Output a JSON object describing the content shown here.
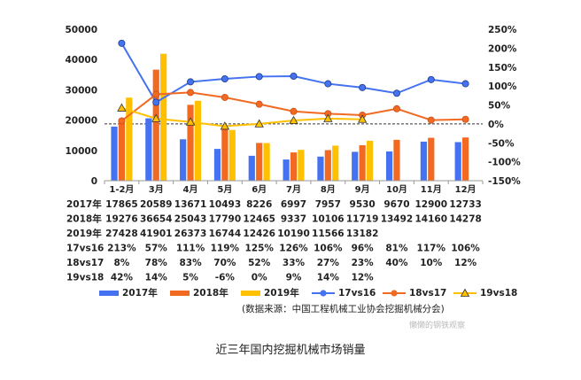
{
  "caption": "近三年国内挖掘机械市场销量",
  "source": "(数据来源：中国工程机械工业协会挖掘机械分会)",
  "watermark": "懒懒的钢铁观察",
  "chart_data": {
    "type": "bar",
    "categories": [
      "1-2月",
      "3月",
      "4月",
      "5月",
      "6月",
      "7月",
      "8月",
      "9月",
      "10月",
      "11月",
      "12月"
    ],
    "ylim": [
      0,
      50000
    ],
    "yticks": [
      0,
      10000,
      20000,
      30000,
      40000,
      50000
    ],
    "y2lim": [
      -150,
      250
    ],
    "y2ticks": [
      -150,
      -100,
      -50,
      0,
      50,
      100,
      150,
      200,
      250
    ],
    "bar_series": [
      {
        "name": "2017年",
        "color": "#4472f0",
        "values": [
          17865,
          20589,
          13671,
          10493,
          8226,
          6997,
          7957,
          9530,
          9670,
          12900,
          12733
        ]
      },
      {
        "name": "2018年",
        "color": "#f26a22",
        "values": [
          19276,
          36654,
          25043,
          17790,
          12465,
          9337,
          10106,
          11719,
          13492,
          14160,
          14278
        ]
      },
      {
        "name": "2019年",
        "color": "#ffc000",
        "values": [
          27428,
          41901,
          26373,
          16744,
          12426,
          10190,
          11566,
          13182,
          null,
          null,
          null
        ]
      }
    ],
    "line_series": [
      {
        "name": "17vs16",
        "color": "#4472f0",
        "marker": "circle",
        "values": [
          213,
          57,
          111,
          119,
          125,
          126,
          106,
          96,
          81,
          117,
          106
        ]
      },
      {
        "name": "18vs17",
        "color": "#f26a22",
        "marker": "circle",
        "values": [
          8,
          78,
          83,
          70,
          52,
          33,
          27,
          23,
          40,
          10,
          12
        ]
      },
      {
        "name": "19vs18",
        "color": "#ffc000",
        "marker": "triangle",
        "values": [
          42,
          14,
          5,
          -6,
          0,
          9,
          14,
          12,
          null,
          null,
          null
        ]
      }
    ],
    "table": {
      "rows": [
        {
          "label": "2017年",
          "values": [
            "17865",
            "20589",
            "13671",
            "10493",
            "8226",
            "6997",
            "7957",
            "9530",
            "9670",
            "12900",
            "12733"
          ]
        },
        {
          "label": "2018年",
          "values": [
            "19276",
            "36654",
            "25043",
            "17790",
            "12465",
            "9337",
            "10106",
            "11719",
            "13492",
            "14160",
            "14278"
          ]
        },
        {
          "label": "2019年",
          "values": [
            "27428",
            "41901",
            "26373",
            "16744",
            "12426",
            "10190",
            "11566",
            "13182",
            "",
            "",
            ""
          ]
        },
        {
          "label": "17vs16",
          "values": [
            "213%",
            "57%",
            "111%",
            "119%",
            "125%",
            "126%",
            "106%",
            "96%",
            "81%",
            "117%",
            "106%"
          ]
        },
        {
          "label": "18vs17",
          "values": [
            "8%",
            "78%",
            "83%",
            "70%",
            "52%",
            "33%",
            "27%",
            "23%",
            "40%",
            "10%",
            "12%"
          ]
        },
        {
          "label": "19vs18",
          "values": [
            "42%",
            "14%",
            "5%",
            "-6%",
            "0%",
            "9%",
            "14%",
            "12%",
            "",
            "",
            ""
          ]
        }
      ]
    },
    "legend_position": "bottom"
  }
}
